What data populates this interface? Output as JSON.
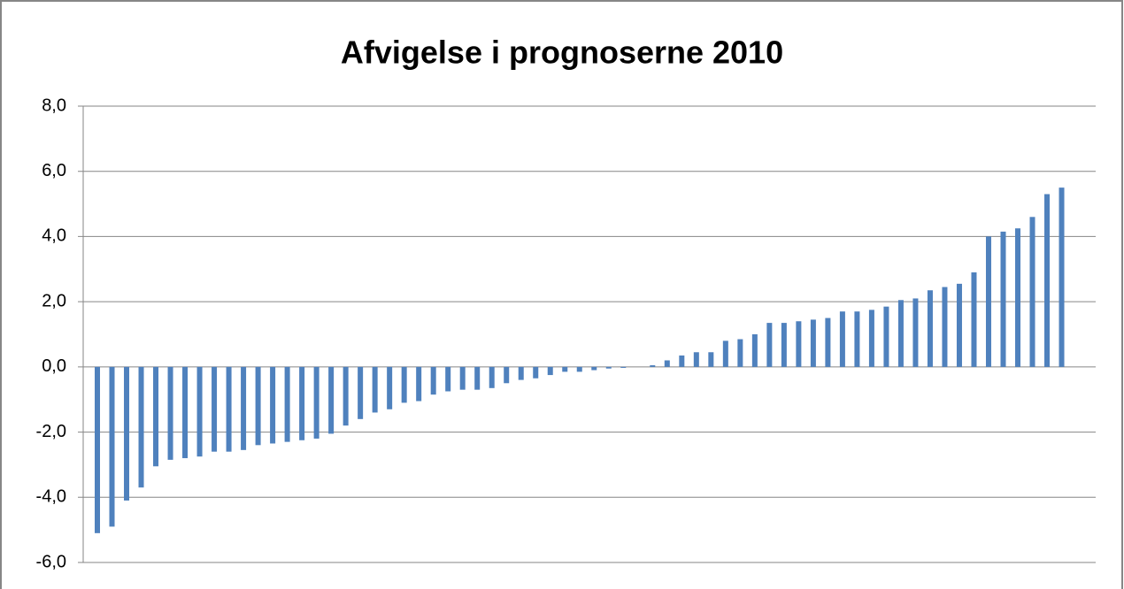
{
  "chart_data": {
    "type": "bar",
    "title": "Afvigelse i prognoserne 2010",
    "values": [
      -5.1,
      -4.9,
      -4.1,
      -3.7,
      -3.05,
      -2.85,
      -2.8,
      -2.75,
      -2.6,
      -2.6,
      -2.55,
      -2.4,
      -2.35,
      -2.3,
      -2.25,
      -2.2,
      -2.05,
      -1.8,
      -1.6,
      -1.4,
      -1.3,
      -1.1,
      -1.05,
      -0.85,
      -0.75,
      -0.7,
      -0.7,
      -0.65,
      -0.5,
      -0.4,
      -0.35,
      -0.25,
      -0.15,
      -0.15,
      -0.1,
      -0.05,
      -0.03,
      0,
      0.05,
      0.2,
      0.35,
      0.45,
      0.45,
      0.8,
      0.85,
      1.0,
      1.35,
      1.35,
      1.4,
      1.45,
      1.5,
      1.7,
      1.7,
      1.75,
      1.85,
      2.05,
      2.1,
      2.35,
      2.45,
      2.55,
      2.9,
      4.0,
      4.15,
      4.25,
      4.6,
      5.3,
      5.5
    ],
    "color": "#4f81bd",
    "ylim": [
      -6,
      8
    ],
    "yticks": [
      {
        "value": -6,
        "label": "-6,0"
      },
      {
        "value": -4,
        "label": "-4,0"
      },
      {
        "value": -2,
        "label": "-2,0"
      },
      {
        "value": 0,
        "label": "0,0"
      },
      {
        "value": 2,
        "label": "2,0"
      },
      {
        "value": 4,
        "label": "4,0"
      },
      {
        "value": 6,
        "label": "6,0"
      },
      {
        "value": 8,
        "label": "8,0"
      }
    ],
    "grid": true
  }
}
